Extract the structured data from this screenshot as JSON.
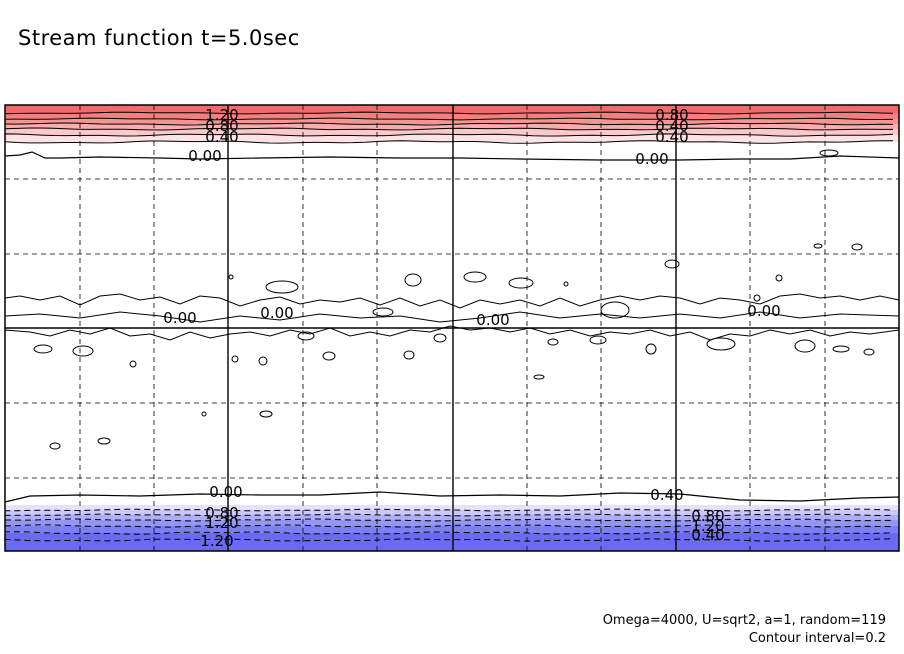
{
  "chart_data": {
    "type": "contour",
    "title": "Stream function t=5.0sec",
    "xlabel": "",
    "ylabel": "",
    "contour_interval": 0.2,
    "grid": true,
    "fill_levels": [
      {
        "value": 1.2,
        "color": "#f26b6b"
      },
      {
        "value": 1.0,
        "color": "#f47f7f"
      },
      {
        "value": 0.8,
        "color": "#f79595"
      },
      {
        "value": 0.6,
        "color": "#f9aeae"
      },
      {
        "value": 0.4,
        "color": "#fbc9c9"
      },
      {
        "value": 0.2,
        "color": "#fde3e3"
      },
      {
        "value": 0.0,
        "color": "#ffffff"
      },
      {
        "value": -0.2,
        "color": "#e3e3fd"
      },
      {
        "value": -0.4,
        "color": "#c9c9fb"
      },
      {
        "value": -0.6,
        "color": "#aeaef9"
      },
      {
        "value": -0.8,
        "color": "#9595f6"
      },
      {
        "value": -1.0,
        "color": "#7f7ff4"
      },
      {
        "value": -1.2,
        "color": "#6b6bf2"
      }
    ],
    "contour_labels": [
      "1.20",
      "0.80",
      "0.40",
      "0.00",
      "0.00",
      "0.00",
      "0.00",
      "0.00",
      "0.00",
      "0.00",
      "0.40",
      "0.80",
      "1.20",
      "1.20",
      "0.80",
      "0.40",
      "0.40",
      "0.80",
      "1.20"
    ]
  },
  "params": {
    "line1": "Omega=4000, U=sqrt2, a=1, random=119",
    "line2": "Contour interval=0.2"
  }
}
